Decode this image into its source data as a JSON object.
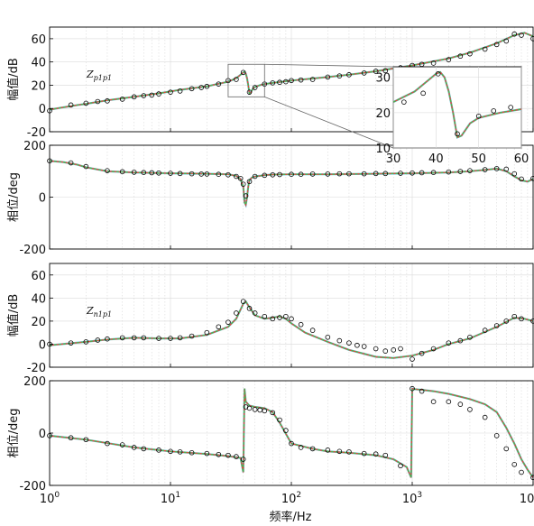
{
  "figure": {
    "xlabel": "频率/Hz",
    "x_tick_labels": [
      "10^0",
      "10^1",
      "10^2",
      "10^3",
      "10^4"
    ],
    "colors": {
      "curve_red": "#e8413c",
      "curve_green": "#4fb24f",
      "curve_cyan": "#5ec8d8",
      "marker_fill": "#9fc59f"
    }
  },
  "chart_data": [
    {
      "type": "line",
      "panel": "Zp1p1 magnitude",
      "annotation": "Zp1p1",
      "ylabel": "幅值/dB",
      "xscale": "log",
      "xlim": [
        1,
        10000
      ],
      "ylim": [
        -20,
        70
      ],
      "yticks": [
        -20,
        0,
        20,
        40,
        60
      ],
      "curve": {
        "x": [
          1,
          1.3,
          1.7,
          2,
          3,
          5,
          8,
          12,
          20,
          30,
          35,
          38,
          40,
          41,
          42,
          43,
          44,
          45,
          46,
          48,
          50,
          55,
          60,
          70,
          100,
          200,
          300,
          500,
          1000,
          2000,
          3000,
          5000,
          7000,
          8500,
          10000
        ],
        "y": [
          -1,
          1,
          3,
          4,
          7,
          10,
          13,
          16,
          19,
          23,
          26,
          29,
          31,
          31.5,
          30,
          26,
          20,
          13,
          13.5,
          17,
          18.5,
          20,
          21,
          22,
          24,
          27,
          29,
          32,
          37,
          43,
          48,
          56,
          63,
          65,
          62
        ]
      },
      "markers": {
        "x": [
          1,
          1.5,
          2,
          2.5,
          3,
          4,
          5,
          6,
          7,
          8,
          10,
          12,
          15,
          18,
          20,
          25,
          30,
          35,
          40,
          45,
          50,
          60,
          70,
          80,
          90,
          100,
          120,
          150,
          200,
          250,
          300,
          400,
          500,
          600,
          800,
          1000,
          1200,
          1500,
          2000,
          2500,
          3000,
          4000,
          5000,
          6000,
          7000,
          8000,
          10000
        ],
        "y": [
          -2,
          3,
          4.5,
          6,
          6.5,
          8,
          10,
          11,
          11.5,
          12.5,
          14,
          15,
          17,
          18,
          19,
          21,
          24,
          25,
          31,
          14,
          18,
          21,
          22,
          22.5,
          23,
          24,
          24.5,
          25,
          27,
          28,
          29,
          30.5,
          32,
          32.5,
          35,
          37,
          38,
          39,
          42,
          45,
          47,
          51,
          55,
          58,
          64,
          63,
          60
        ]
      },
      "inset": {
        "xlim": [
          30,
          60
        ],
        "ylim": [
          10,
          33
        ],
        "xticks": [
          30,
          40,
          50,
          60
        ],
        "yticks": [
          10,
          20,
          30
        ],
        "markers": {
          "x": [
            32.5,
            37,
            40.5,
            45,
            50,
            53.5,
            57.5
          ],
          "y": [
            23,
            25.5,
            31,
            14,
            19,
            20.5,
            21.5
          ]
        }
      }
    },
    {
      "type": "line",
      "panel": "Zp1p1 phase",
      "ylabel": "相位/deg",
      "xscale": "log",
      "xlim": [
        1,
        10000
      ],
      "ylim": [
        -200,
        200
      ],
      "yticks": [
        -200,
        0,
        200
      ],
      "curve": {
        "x": [
          1,
          1.3,
          1.7,
          2,
          3,
          5,
          10,
          20,
          30,
          35,
          38,
          40,
          41,
          42,
          43,
          44,
          45,
          47,
          50,
          55,
          60,
          70,
          100,
          200,
          500,
          1000,
          2000,
          3000,
          4000,
          5000,
          6000,
          7000,
          8000,
          9000,
          10000
        ],
        "y": [
          140,
          135,
          125,
          115,
          100,
          95,
          92,
          90,
          88,
          82,
          70,
          40,
          -20,
          -30,
          0,
          40,
          65,
          75,
          80,
          82,
          85,
          87,
          88,
          88,
          90,
          92,
          95,
          100,
          105,
          110,
          100,
          80,
          65,
          60,
          70
        ]
      },
      "markers": {
        "x": [
          1,
          1.5,
          2,
          3,
          4,
          5,
          6,
          7,
          8,
          10,
          12,
          15,
          18,
          20,
          25,
          30,
          35,
          38,
          40,
          42,
          45,
          50,
          60,
          70,
          80,
          100,
          120,
          150,
          200,
          250,
          300,
          400,
          500,
          600,
          800,
          1000,
          1200,
          1500,
          2000,
          2500,
          3000,
          4000,
          5000,
          6000,
          7000,
          8000,
          10000
        ],
        "y": [
          140,
          132,
          118,
          102,
          98,
          96,
          95,
          94,
          93,
          92,
          91,
          90,
          89,
          89,
          88,
          86,
          80,
          72,
          50,
          5,
          60,
          80,
          84,
          86,
          87,
          88,
          88,
          89,
          89,
          90,
          90,
          90,
          91,
          91,
          92,
          93,
          94,
          95,
          97,
          99,
          102,
          106,
          110,
          108,
          90,
          70,
          72
        ]
      }
    },
    {
      "type": "line",
      "panel": "Zn1p1 magnitude",
      "annotation": "Zn1p1",
      "ylabel": "幅值/dB",
      "xscale": "log",
      "xlim": [
        1,
        10000
      ],
      "ylim": [
        -20,
        70
      ],
      "yticks": [
        -20,
        0,
        20,
        40,
        60
      ],
      "curve": {
        "x": [
          1,
          2,
          3,
          5,
          8,
          12,
          20,
          30,
          35,
          38,
          40,
          42,
          45,
          50,
          60,
          70,
          80,
          90,
          100,
          130,
          200,
          300,
          500,
          700,
          1000,
          1500,
          2000,
          3000,
          5000,
          7000,
          8500,
          10000
        ],
        "y": [
          -1,
          2,
          4,
          5.5,
          5,
          5,
          8,
          15,
          22,
          30,
          35,
          37,
          32,
          25,
          22,
          23,
          24,
          22,
          18,
          10,
          2,
          -5,
          -11,
          -12,
          -10,
          -5,
          0,
          5,
          15,
          23,
          22,
          20
        ]
      },
      "markers": {
        "x": [
          1,
          1.5,
          2,
          2.5,
          3,
          4,
          5,
          6,
          8,
          10,
          12,
          15,
          20,
          25,
          30,
          35,
          40,
          45,
          50,
          60,
          70,
          80,
          90,
          100,
          120,
          150,
          200,
          250,
          300,
          350,
          400,
          500,
          600,
          700,
          800,
          1000,
          1200,
          1500,
          2000,
          2500,
          3000,
          4000,
          5000,
          6000,
          7000,
          8000,
          10000
        ],
        "y": [
          0,
          1,
          2,
          3.5,
          4.5,
          5.5,
          5.5,
          5.5,
          5,
          5,
          5.5,
          7,
          10,
          15,
          19,
          27,
          37,
          31,
          27,
          24,
          22,
          23,
          24,
          22,
          17,
          12,
          6,
          3,
          1,
          -1,
          -2,
          -4,
          -6,
          -5,
          -4,
          -13,
          -8,
          -4,
          1,
          3,
          6,
          12,
          16,
          20,
          24,
          22,
          20
        ]
      }
    },
    {
      "type": "line",
      "panel": "Zn1p1 phase",
      "ylabel": "相位/deg",
      "xscale": "log",
      "xlim": [
        1,
        10000
      ],
      "ylim": [
        -200,
        200
      ],
      "yticks": [
        -200,
        0,
        200
      ],
      "curve": {
        "x": [
          1,
          2,
          5,
          10,
          20,
          30,
          38,
          40,
          41,
          42,
          45,
          50,
          60,
          70,
          80,
          100,
          150,
          200,
          300,
          500,
          700,
          900,
          980,
          1000,
          1050,
          1200,
          1500,
          2000,
          3000,
          4000,
          5000,
          6000,
          7000,
          8000,
          9000,
          10000
        ],
        "y": [
          -10,
          -25,
          -55,
          -70,
          -80,
          -88,
          -95,
          -150,
          170,
          120,
          105,
          100,
          95,
          80,
          40,
          -40,
          -60,
          -70,
          -75,
          -85,
          -100,
          -130,
          -170,
          170,
          168,
          165,
          160,
          150,
          130,
          110,
          80,
          20,
          -40,
          -100,
          -140,
          -170
        ]
      },
      "markers": {
        "x": [
          1,
          1.5,
          2,
          3,
          4,
          5,
          6,
          8,
          10,
          12,
          15,
          20,
          25,
          30,
          35,
          40,
          42,
          45,
          50,
          55,
          60,
          70,
          80,
          90,
          100,
          120,
          150,
          200,
          250,
          300,
          400,
          500,
          600,
          800,
          1000,
          1200,
          1500,
          2000,
          2500,
          3000,
          4000,
          5000,
          6000,
          7000,
          8000,
          10000
        ],
        "y": [
          -10,
          -18,
          -25,
          -40,
          -45,
          -55,
          -60,
          -65,
          -70,
          -72,
          -75,
          -78,
          -82,
          -85,
          -90,
          -100,
          100,
          95,
          90,
          88,
          85,
          78,
          50,
          10,
          -40,
          -55,
          -60,
          -65,
          -70,
          -72,
          -78,
          -80,
          -85,
          -125,
          170,
          160,
          120,
          120,
          110,
          90,
          60,
          -10,
          -60,
          -120,
          -150,
          -170
        ]
      }
    }
  ]
}
